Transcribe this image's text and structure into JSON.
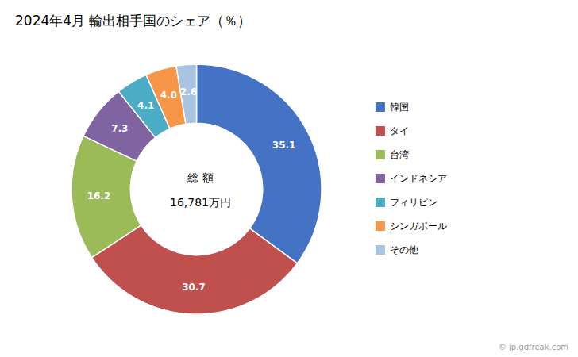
{
  "chart_data": {
    "type": "donut",
    "title": "2024年4月 輸出相手国のシェア（％）",
    "categories": [
      "韓国",
      "タイ",
      "台湾",
      "インドネシア",
      "フィリピン",
      "シンガポール",
      "その他"
    ],
    "values": [
      35.1,
      30.7,
      16.2,
      7.3,
      4.1,
      4.0,
      2.6
    ],
    "value_labels": [
      "35.1",
      "30.7",
      "16.2",
      "7.3",
      "4.1",
      "4.0",
      "2.6"
    ],
    "colors": [
      "#4472C4",
      "#C0504D",
      "#9BBB59",
      "#8064A2",
      "#4BACC6",
      "#F79646",
      "#A8C4E0"
    ],
    "annotations": [
      "総 額",
      "16,781万円",
      "© jp.gdfreak.com"
    ],
    "data_labels": true,
    "legend": "right"
  }
}
